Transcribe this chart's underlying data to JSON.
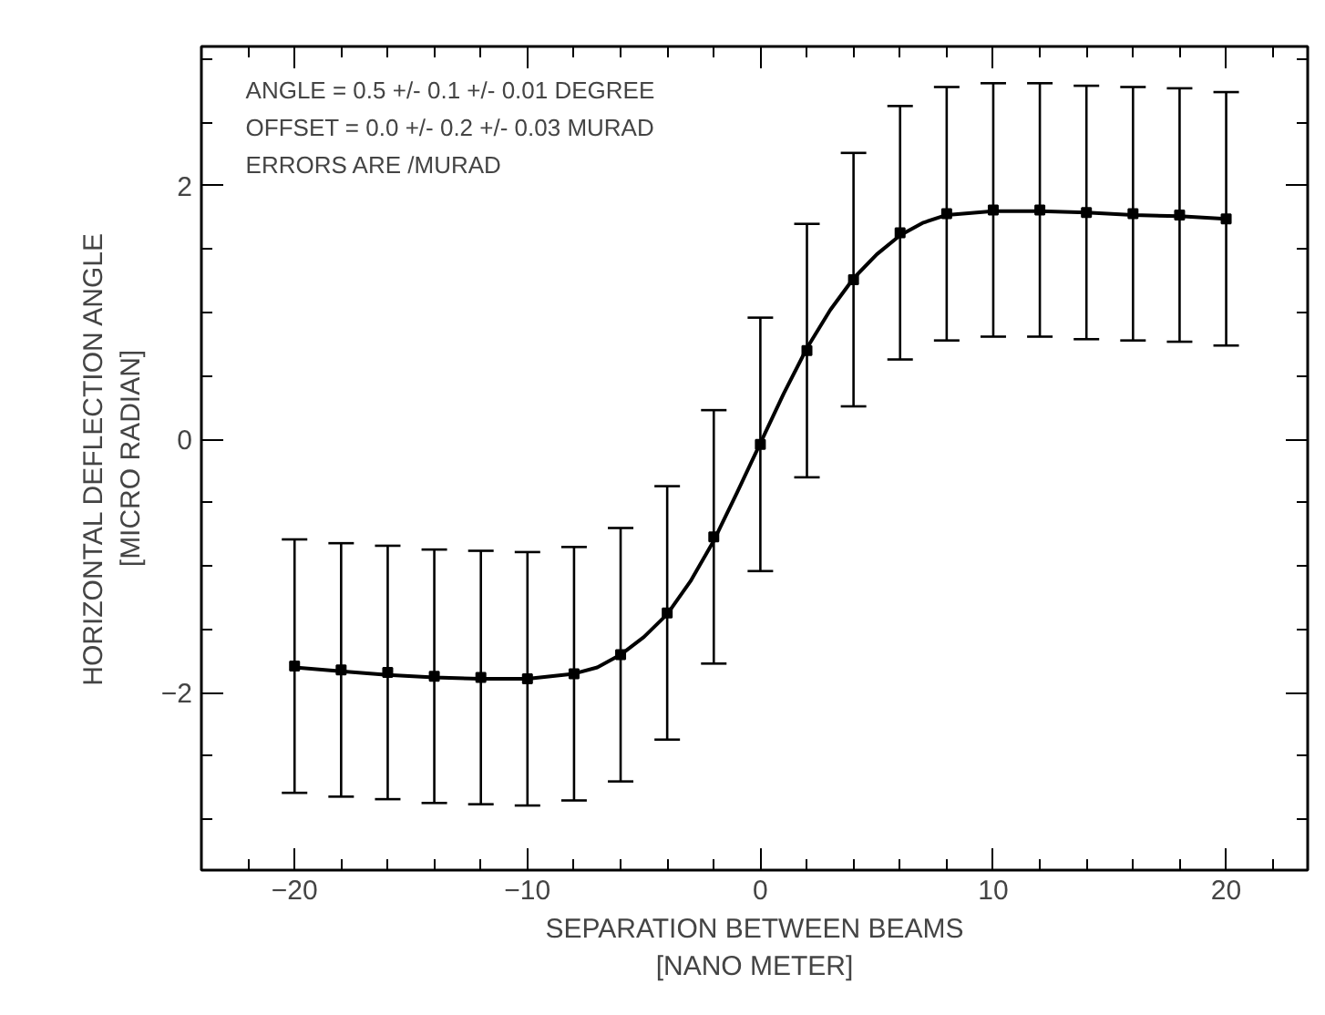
{
  "chart_data": {
    "type": "scatter",
    "xlabel": "SEPARATION BETWEEN BEAMS\n[NANO METER]",
    "ylabel": "HORIZONTAL DEFLECTION ANGLE\n[MICRO RADIAN]",
    "annotations": [
      "ANGLE =    0.5 +/-    0.1 +/-   0.01 DEGREE",
      "OFFSET =    0.0 +/-    0.2 +/-   0.03 MURAD",
      "ERRORS ARE /MURAD"
    ],
    "xlim": [
      -24,
      23.5
    ],
    "ylim": [
      -3.4,
      3.1
    ],
    "xticks": [
      -20,
      -10,
      0,
      10,
      20
    ],
    "yticks": [
      -2,
      0,
      2
    ],
    "grid": false,
    "series": [
      {
        "marker": "square",
        "color": "#000000",
        "x": [
          -20,
          -18,
          -16,
          -14,
          -12,
          -10,
          -8,
          -6,
          -4,
          -2,
          0,
          2,
          4,
          6,
          8,
          10,
          12,
          14,
          16,
          18,
          20
        ],
        "values": [
          -1.79,
          -1.82,
          -1.84,
          -1.87,
          -1.88,
          -1.89,
          -1.85,
          -1.7,
          -1.37,
          -0.77,
          -0.04,
          0.7,
          1.26,
          1.63,
          1.78,
          1.81,
          1.81,
          1.79,
          1.78,
          1.77,
          1.74
        ],
        "errors": [
          1,
          1,
          1,
          1,
          1,
          1,
          1,
          1,
          1,
          1,
          1,
          1,
          1,
          1,
          1,
          1,
          1,
          1,
          1,
          1,
          1
        ]
      },
      {
        "type": "line",
        "color": "#000000",
        "line_style": "solid",
        "x": [
          -20,
          -18,
          -16,
          -14,
          -12,
          -10,
          -8,
          -7,
          -6,
          -5,
          -4,
          -3,
          -2,
          -1,
          0,
          1,
          2,
          3,
          4,
          5,
          6,
          7,
          8,
          10,
          12,
          14,
          16,
          18,
          20
        ],
        "values": [
          -1.8,
          -1.83,
          -1.86,
          -1.88,
          -1.89,
          -1.89,
          -1.85,
          -1.8,
          -1.7,
          -1.56,
          -1.38,
          -1.12,
          -0.8,
          -0.42,
          -0.03,
          0.36,
          0.72,
          1.02,
          1.27,
          1.46,
          1.61,
          1.71,
          1.77,
          1.8,
          1.8,
          1.79,
          1.77,
          1.76,
          1.74
        ]
      }
    ]
  }
}
